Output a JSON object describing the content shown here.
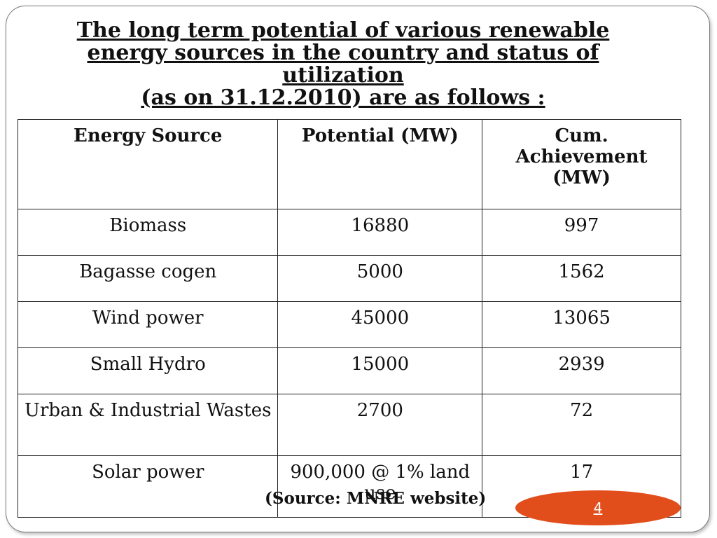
{
  "slide": {
    "title_lines": [
      "The long term potential of various renewable",
      "energy sources in the country and status of",
      "utilization ",
      "(as on 31.12.2010) are as follows :"
    ],
    "table": {
      "headers": [
        "Energy Source",
        "Potential (MW)",
        "Cum. Achievement (MW)"
      ],
      "rows": [
        [
          "Biomass",
          "16880",
          "997"
        ],
        [
          "Bagasse cogen",
          "5000",
          "1562"
        ],
        [
          "Wind power",
          "45000",
          "13065"
        ],
        [
          "Small Hydro",
          "15000",
          "2939"
        ],
        [
          "Urban & Industrial Wastes",
          "2700",
          "72"
        ],
        [
          "Solar power",
          "900,000 @ 1% land use",
          "17"
        ]
      ]
    },
    "source_note": "(Source: MNRE website)",
    "page_number": "4",
    "accent_color": "#e24e1b"
  }
}
